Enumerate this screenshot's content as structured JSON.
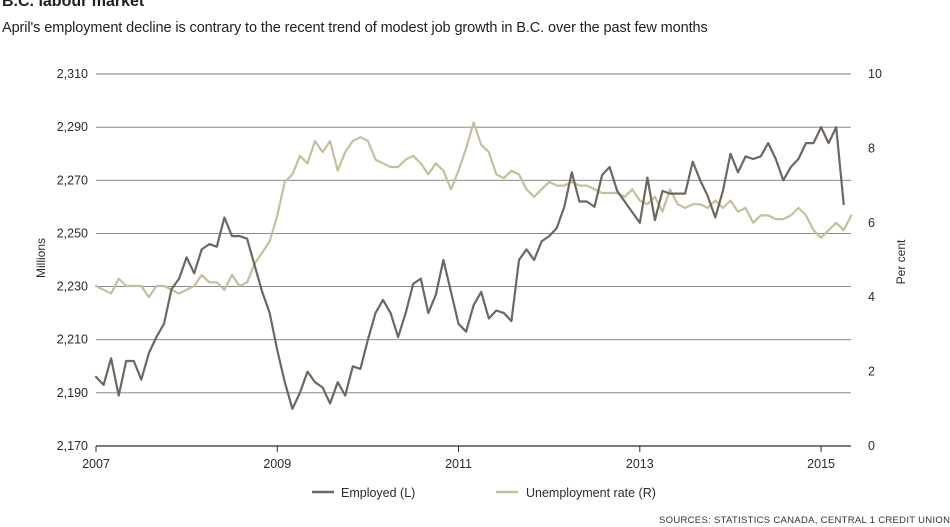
{
  "header": {
    "title": "B.C. labour market",
    "subtitle": "April's employment decline is contrary to the recent trend of modest job growth in B.C. over the past few months"
  },
  "source": "SOURCES: STATISTICS CANADA, CENTRAL 1 CREDIT UNION",
  "chart_data": {
    "type": "line",
    "grid": "horizontal",
    "legend_position": "bottom-center",
    "x_tick_labels": [
      "2007",
      "2009",
      "2011",
      "2013",
      "2015"
    ],
    "x_tick_values": [
      2007,
      2009,
      2011,
      2013,
      2015
    ],
    "xlim": [
      2007,
      2015.33
    ],
    "left_axis": {
      "label": "Millions",
      "ylim": [
        2170,
        2310
      ],
      "tick_values": [
        2170,
        2190,
        2210,
        2230,
        2250,
        2270,
        2290,
        2310
      ],
      "tick_labels": [
        "2,170",
        "2,190",
        "2,210",
        "2,230",
        "2,250",
        "2,270",
        "2,290",
        "2,310"
      ]
    },
    "right_axis": {
      "label": "Per cent",
      "ylim": [
        0,
        10
      ],
      "tick_values": [
        0,
        2,
        4,
        6,
        8,
        10
      ],
      "tick_labels": [
        "0",
        "2",
        "4",
        "6",
        "8",
        "10"
      ]
    },
    "series": [
      {
        "name": "Employed (L)",
        "axis": "left",
        "color": "#6e675f",
        "x_start": 2007,
        "x_step": 0.083333,
        "values": [
          2196,
          2193,
          2203,
          2189,
          2202,
          2202,
          2195,
          2205,
          2211,
          2216,
          2229,
          2233,
          2241,
          2235,
          2244,
          2246,
          2245,
          2256,
          2249,
          2249,
          2248,
          2238,
          2228,
          2220,
          2206,
          2194,
          2184,
          2190,
          2198,
          2194,
          2192,
          2186,
          2194,
          2189,
          2200,
          2199,
          2210,
          2220,
          2225,
          2220,
          2211,
          2220,
          2231,
          2233,
          2220,
          2227,
          2240,
          2228,
          2216,
          2213,
          2223,
          2228,
          2218,
          2221,
          2220,
          2217,
          2240,
          2244,
          2240,
          2247,
          2249,
          2252,
          2260,
          2273,
          2262,
          2262,
          2260,
          2272,
          2275,
          2266,
          2262,
          2258,
          2254,
          2271,
          2255,
          2266,
          2265,
          2265,
          2265,
          2277,
          2270,
          2264,
          2256,
          2266,
          2280,
          2273,
          2279,
          2278,
          2279,
          2284,
          2278,
          2270,
          2275,
          2278,
          2284,
          2284,
          2290,
          2284,
          2290,
          2261
        ]
      },
      {
        "name": "Unemployment rate (R)",
        "axis": "right",
        "color": "#c4c19a",
        "x_start": 2007,
        "x_step": 0.083333,
        "values": [
          4.3,
          4.2,
          4.1,
          4.5,
          4.3,
          4.3,
          4.3,
          4.0,
          4.3,
          4.3,
          4.2,
          4.1,
          4.2,
          4.3,
          4.6,
          4.4,
          4.4,
          4.2,
          4.6,
          4.3,
          4.4,
          4.9,
          5.2,
          5.5,
          6.2,
          7.1,
          7.3,
          7.8,
          7.6,
          8.2,
          7.9,
          8.2,
          7.4,
          7.9,
          8.2,
          8.3,
          8.2,
          7.7,
          7.6,
          7.5,
          7.5,
          7.7,
          7.8,
          7.6,
          7.3,
          7.6,
          7.4,
          6.9,
          7.4,
          8.0,
          8.7,
          8.1,
          7.9,
          7.3,
          7.2,
          7.4,
          7.3,
          6.9,
          6.7,
          6.9,
          7.1,
          7.0,
          7.0,
          7.1,
          7.0,
          7.0,
          6.9,
          6.8,
          6.8,
          6.8,
          6.7,
          6.9,
          6.6,
          6.5,
          6.7,
          6.3,
          6.9,
          6.5,
          6.4,
          6.5,
          6.5,
          6.4,
          6.6,
          6.4,
          6.6,
          6.3,
          6.4,
          6.0,
          6.2,
          6.2,
          6.1,
          6.1,
          6.2,
          6.4,
          6.2,
          5.8,
          5.6,
          5.8,
          6.0,
          5.8,
          6.2
        ]
      }
    ]
  }
}
